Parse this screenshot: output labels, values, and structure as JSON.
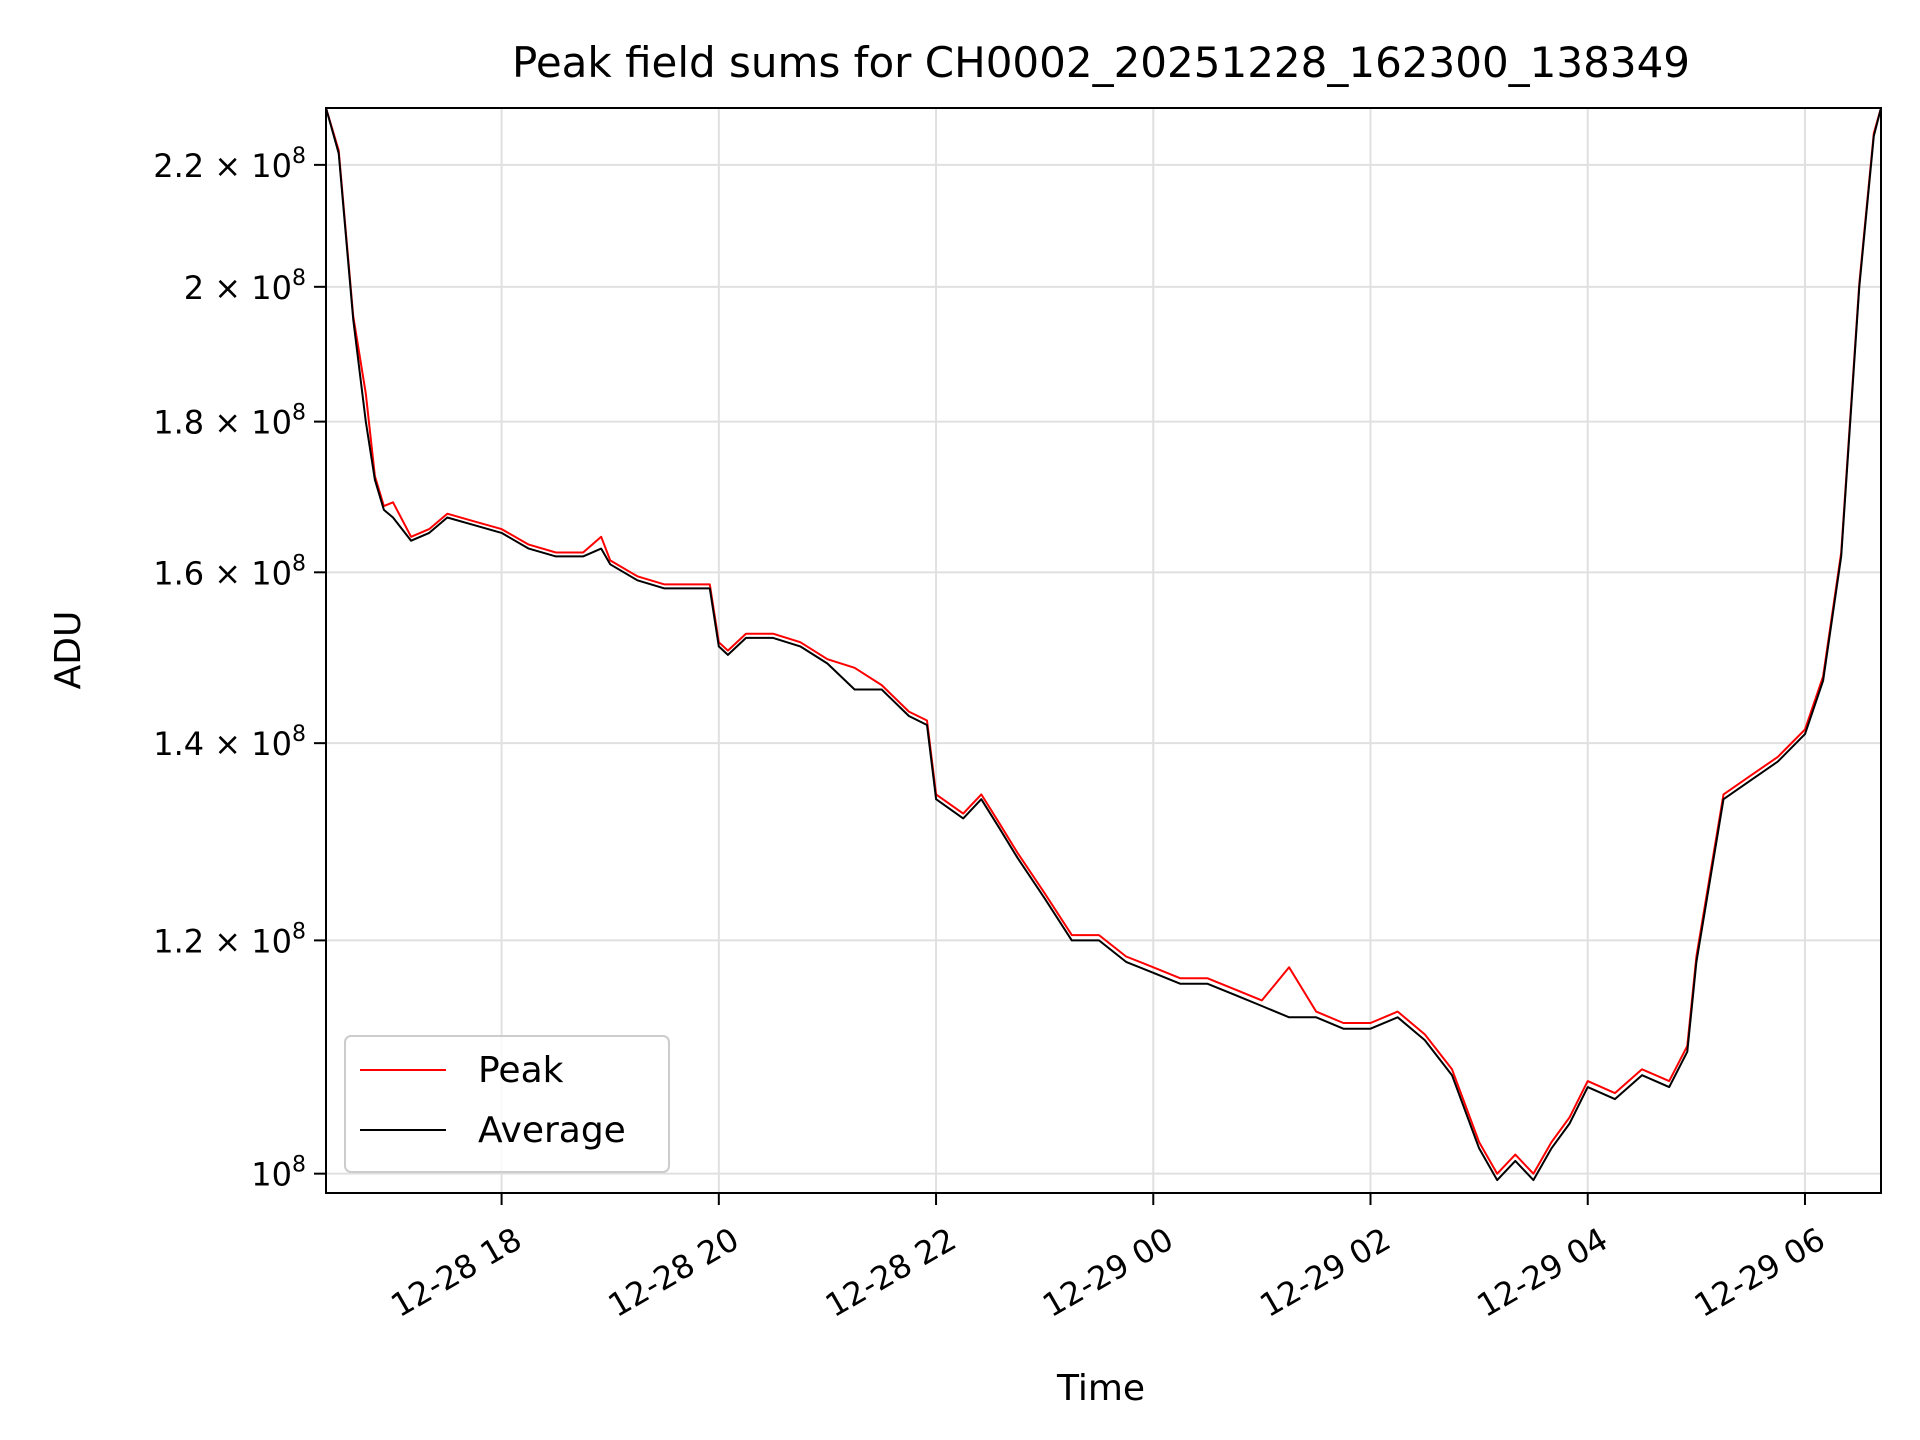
{
  "chart_data": {
    "type": "line",
    "title": "Peak field sums for CH0002_20251228_162300_138349",
    "xlabel": "Time",
    "ylabel": "ADU",
    "y_scale": "log",
    "ylim": [
      98500000,
      230000000
    ],
    "xlim": [
      "2025-12-28T16:23:00",
      "2025-12-29T06:42:00"
    ],
    "grid": true,
    "legend_position": "lower-left",
    "x_ticks": [
      "2025-12-28T18:00:00",
      "2025-12-28T20:00:00",
      "2025-12-28T22:00:00",
      "2025-12-29T00:00:00",
      "2025-12-29T02:00:00",
      "2025-12-29T04:00:00",
      "2025-12-29T06:00:00"
    ],
    "x_tick_labels": [
      "12-28 18",
      "12-28 20",
      "12-28 22",
      "12-29 00",
      "12-29 02",
      "12-29 04",
      "12-29 06"
    ],
    "y_ticks": [
      {
        "value": 100000000,
        "mantissa": "",
        "exp": "8"
      },
      {
        "value": 120000000,
        "mantissa": "1.2",
        "exp": "8"
      },
      {
        "value": 140000000,
        "mantissa": "1.4",
        "exp": "8"
      },
      {
        "value": 160000000,
        "mantissa": "1.6",
        "exp": "8"
      },
      {
        "value": 180000000,
        "mantissa": "1.8",
        "exp": "8"
      },
      {
        "value": 200000000,
        "mantissa": "2",
        "exp": "8"
      },
      {
        "value": 220000000,
        "mantissa": "2.2",
        "exp": "8"
      }
    ],
    "series": [
      {
        "name": "Average",
        "color": "#000000",
        "x": [
          "2025-12-28T16:23:00",
          "2025-12-28T16:30:00",
          "2025-12-28T16:38:00",
          "2025-12-28T16:45:00",
          "2025-12-28T16:50:00",
          "2025-12-28T16:55:00",
          "2025-12-28T17:00:00",
          "2025-12-28T17:10:00",
          "2025-12-28T17:20:00",
          "2025-12-28T17:30:00",
          "2025-12-28T17:45:00",
          "2025-12-28T18:00:00",
          "2025-12-28T18:15:00",
          "2025-12-28T18:30:00",
          "2025-12-28T18:45:00",
          "2025-12-28T18:55:00",
          "2025-12-28T19:00:00",
          "2025-12-28T19:15:00",
          "2025-12-28T19:30:00",
          "2025-12-28T19:45:00",
          "2025-12-28T19:55:00",
          "2025-12-28T20:00:00",
          "2025-12-28T20:05:00",
          "2025-12-28T20:15:00",
          "2025-12-28T20:30:00",
          "2025-12-28T20:45:00",
          "2025-12-28T21:00:00",
          "2025-12-28T21:15:00",
          "2025-12-28T21:30:00",
          "2025-12-28T21:45:00",
          "2025-12-28T21:55:00",
          "2025-12-28T22:00:00",
          "2025-12-28T22:15:00",
          "2025-12-28T22:25:00",
          "2025-12-28T22:35:00",
          "2025-12-28T22:45:00",
          "2025-12-28T23:00:00",
          "2025-12-28T23:15:00",
          "2025-12-28T23:30:00",
          "2025-12-28T23:45:00",
          "2025-12-29T00:00:00",
          "2025-12-29T00:15:00",
          "2025-12-29T00:30:00",
          "2025-12-29T00:45:00",
          "2025-12-29T01:00:00",
          "2025-12-29T01:15:00",
          "2025-12-29T01:30:00",
          "2025-12-29T01:45:00",
          "2025-12-29T02:00:00",
          "2025-12-29T02:15:00",
          "2025-12-29T02:30:00",
          "2025-12-29T02:45:00",
          "2025-12-29T03:00:00",
          "2025-12-29T03:10:00",
          "2025-12-29T03:20:00",
          "2025-12-29T03:30:00",
          "2025-12-29T03:40:00",
          "2025-12-29T03:50:00",
          "2025-12-29T04:00:00",
          "2025-12-29T04:15:00",
          "2025-12-29T04:30:00",
          "2025-12-29T04:45:00",
          "2025-12-29T04:55:00",
          "2025-12-29T05:00:00",
          "2025-12-29T05:15:00",
          "2025-12-29T05:30:00",
          "2025-12-29T05:45:00",
          "2025-12-29T06:00:00",
          "2025-12-29T06:10:00",
          "2025-12-29T06:20:00",
          "2025-12-29T06:30:00",
          "2025-12-29T06:38:00",
          "2025-12-29T06:42:00"
        ],
        "values": [
          230000000,
          222000000,
          195000000,
          180000000,
          172000000,
          168000000,
          167000000,
          164000000,
          165000000,
          167000000,
          166000000,
          165000000,
          163000000,
          162000000,
          162000000,
          163000000,
          161000000,
          159000000,
          158000000,
          158000000,
          158000000,
          151000000,
          150000000,
          152000000,
          152000000,
          151000000,
          149000000,
          146000000,
          146000000,
          143000000,
          142000000,
          134000000,
          132000000,
          134000000,
          131000000,
          128000000,
          124000000,
          120000000,
          120000000,
          118000000,
          117000000,
          116000000,
          116000000,
          115000000,
          114000000,
          113000000,
          113000000,
          112000000,
          112000000,
          113000000,
          111000000,
          108000000,
          102000000,
          99500000,
          101000000,
          99500000,
          102000000,
          104000000,
          107000000,
          106000000,
          108000000,
          107000000,
          110000000,
          118000000,
          134000000,
          136000000,
          138000000,
          141000000,
          147000000,
          162000000,
          200000000,
          225000000,
          230000000
        ]
      },
      {
        "name": "Peak",
        "color": "#ff0000",
        "x": [
          "2025-12-28T16:23:00",
          "2025-12-28T16:30:00",
          "2025-12-28T16:38:00",
          "2025-12-28T16:45:00",
          "2025-12-28T16:50:00",
          "2025-12-28T16:55:00",
          "2025-12-28T17:00:00",
          "2025-12-28T17:10:00",
          "2025-12-28T17:20:00",
          "2025-12-28T17:30:00",
          "2025-12-28T17:45:00",
          "2025-12-28T18:00:00",
          "2025-12-28T18:15:00",
          "2025-12-28T18:30:00",
          "2025-12-28T18:45:00",
          "2025-12-28T18:55:00",
          "2025-12-28T19:00:00",
          "2025-12-28T19:15:00",
          "2025-12-28T19:30:00",
          "2025-12-28T19:45:00",
          "2025-12-28T19:55:00",
          "2025-12-28T20:00:00",
          "2025-12-28T20:05:00",
          "2025-12-28T20:15:00",
          "2025-12-28T20:30:00",
          "2025-12-28T20:45:00",
          "2025-12-28T21:00:00",
          "2025-12-28T21:15:00",
          "2025-12-28T21:30:00",
          "2025-12-28T21:45:00",
          "2025-12-28T21:55:00",
          "2025-12-28T22:00:00",
          "2025-12-28T22:15:00",
          "2025-12-28T22:25:00",
          "2025-12-28T22:35:00",
          "2025-12-28T22:45:00",
          "2025-12-28T23:00:00",
          "2025-12-28T23:15:00",
          "2025-12-28T23:30:00",
          "2025-12-28T23:45:00",
          "2025-12-29T00:00:00",
          "2025-12-29T00:15:00",
          "2025-12-29T00:30:00",
          "2025-12-29T00:45:00",
          "2025-12-29T01:00:00",
          "2025-12-29T01:15:00",
          "2025-12-29T01:30:00",
          "2025-12-29T01:45:00",
          "2025-12-29T02:00:00",
          "2025-12-29T02:15:00",
          "2025-12-29T02:30:00",
          "2025-12-29T02:45:00",
          "2025-12-29T03:00:00",
          "2025-12-29T03:10:00",
          "2025-12-29T03:20:00",
          "2025-12-29T03:30:00",
          "2025-12-29T03:40:00",
          "2025-12-29T03:50:00",
          "2025-12-29T04:00:00",
          "2025-12-29T04:15:00",
          "2025-12-29T04:30:00",
          "2025-12-29T04:45:00",
          "2025-12-29T04:55:00",
          "2025-12-29T05:00:00",
          "2025-12-29T05:15:00",
          "2025-12-29T05:30:00",
          "2025-12-29T05:45:00",
          "2025-12-29T06:00:00",
          "2025-12-29T06:10:00",
          "2025-12-29T06:20:00",
          "2025-12-29T06:30:00",
          "2025-12-29T06:38:00",
          "2025-12-29T06:42:00"
        ],
        "values": [
          230000000,
          222500000,
          195500000,
          184000000,
          172500000,
          168500000,
          169000000,
          164500000,
          165500000,
          167500000,
          166500000,
          165500000,
          163500000,
          162500000,
          162500000,
          164500000,
          161500000,
          159500000,
          158500000,
          158500000,
          158500000,
          151500000,
          150500000,
          152500000,
          152500000,
          151500000,
          149500000,
          148500000,
          146500000,
          143500000,
          142500000,
          134500000,
          132500000,
          134500000,
          131500000,
          128500000,
          124500000,
          120500000,
          120500000,
          118500000,
          117500000,
          116500000,
          116500000,
          115500000,
          114500000,
          117500000,
          113500000,
          112500000,
          112500000,
          113500000,
          111500000,
          108500000,
          102500000,
          100000000,
          101500000,
          100000000,
          102500000,
          104500000,
          107500000,
          106500000,
          108500000,
          107500000,
          110500000,
          118500000,
          134500000,
          136500000,
          138500000,
          141500000,
          147500000,
          162500000,
          200500000,
          225500000,
          230000000
        ]
      }
    ],
    "legend": [
      {
        "label": "Peak",
        "color": "#ff0000"
      },
      {
        "label": "Average",
        "color": "#000000"
      }
    ]
  }
}
